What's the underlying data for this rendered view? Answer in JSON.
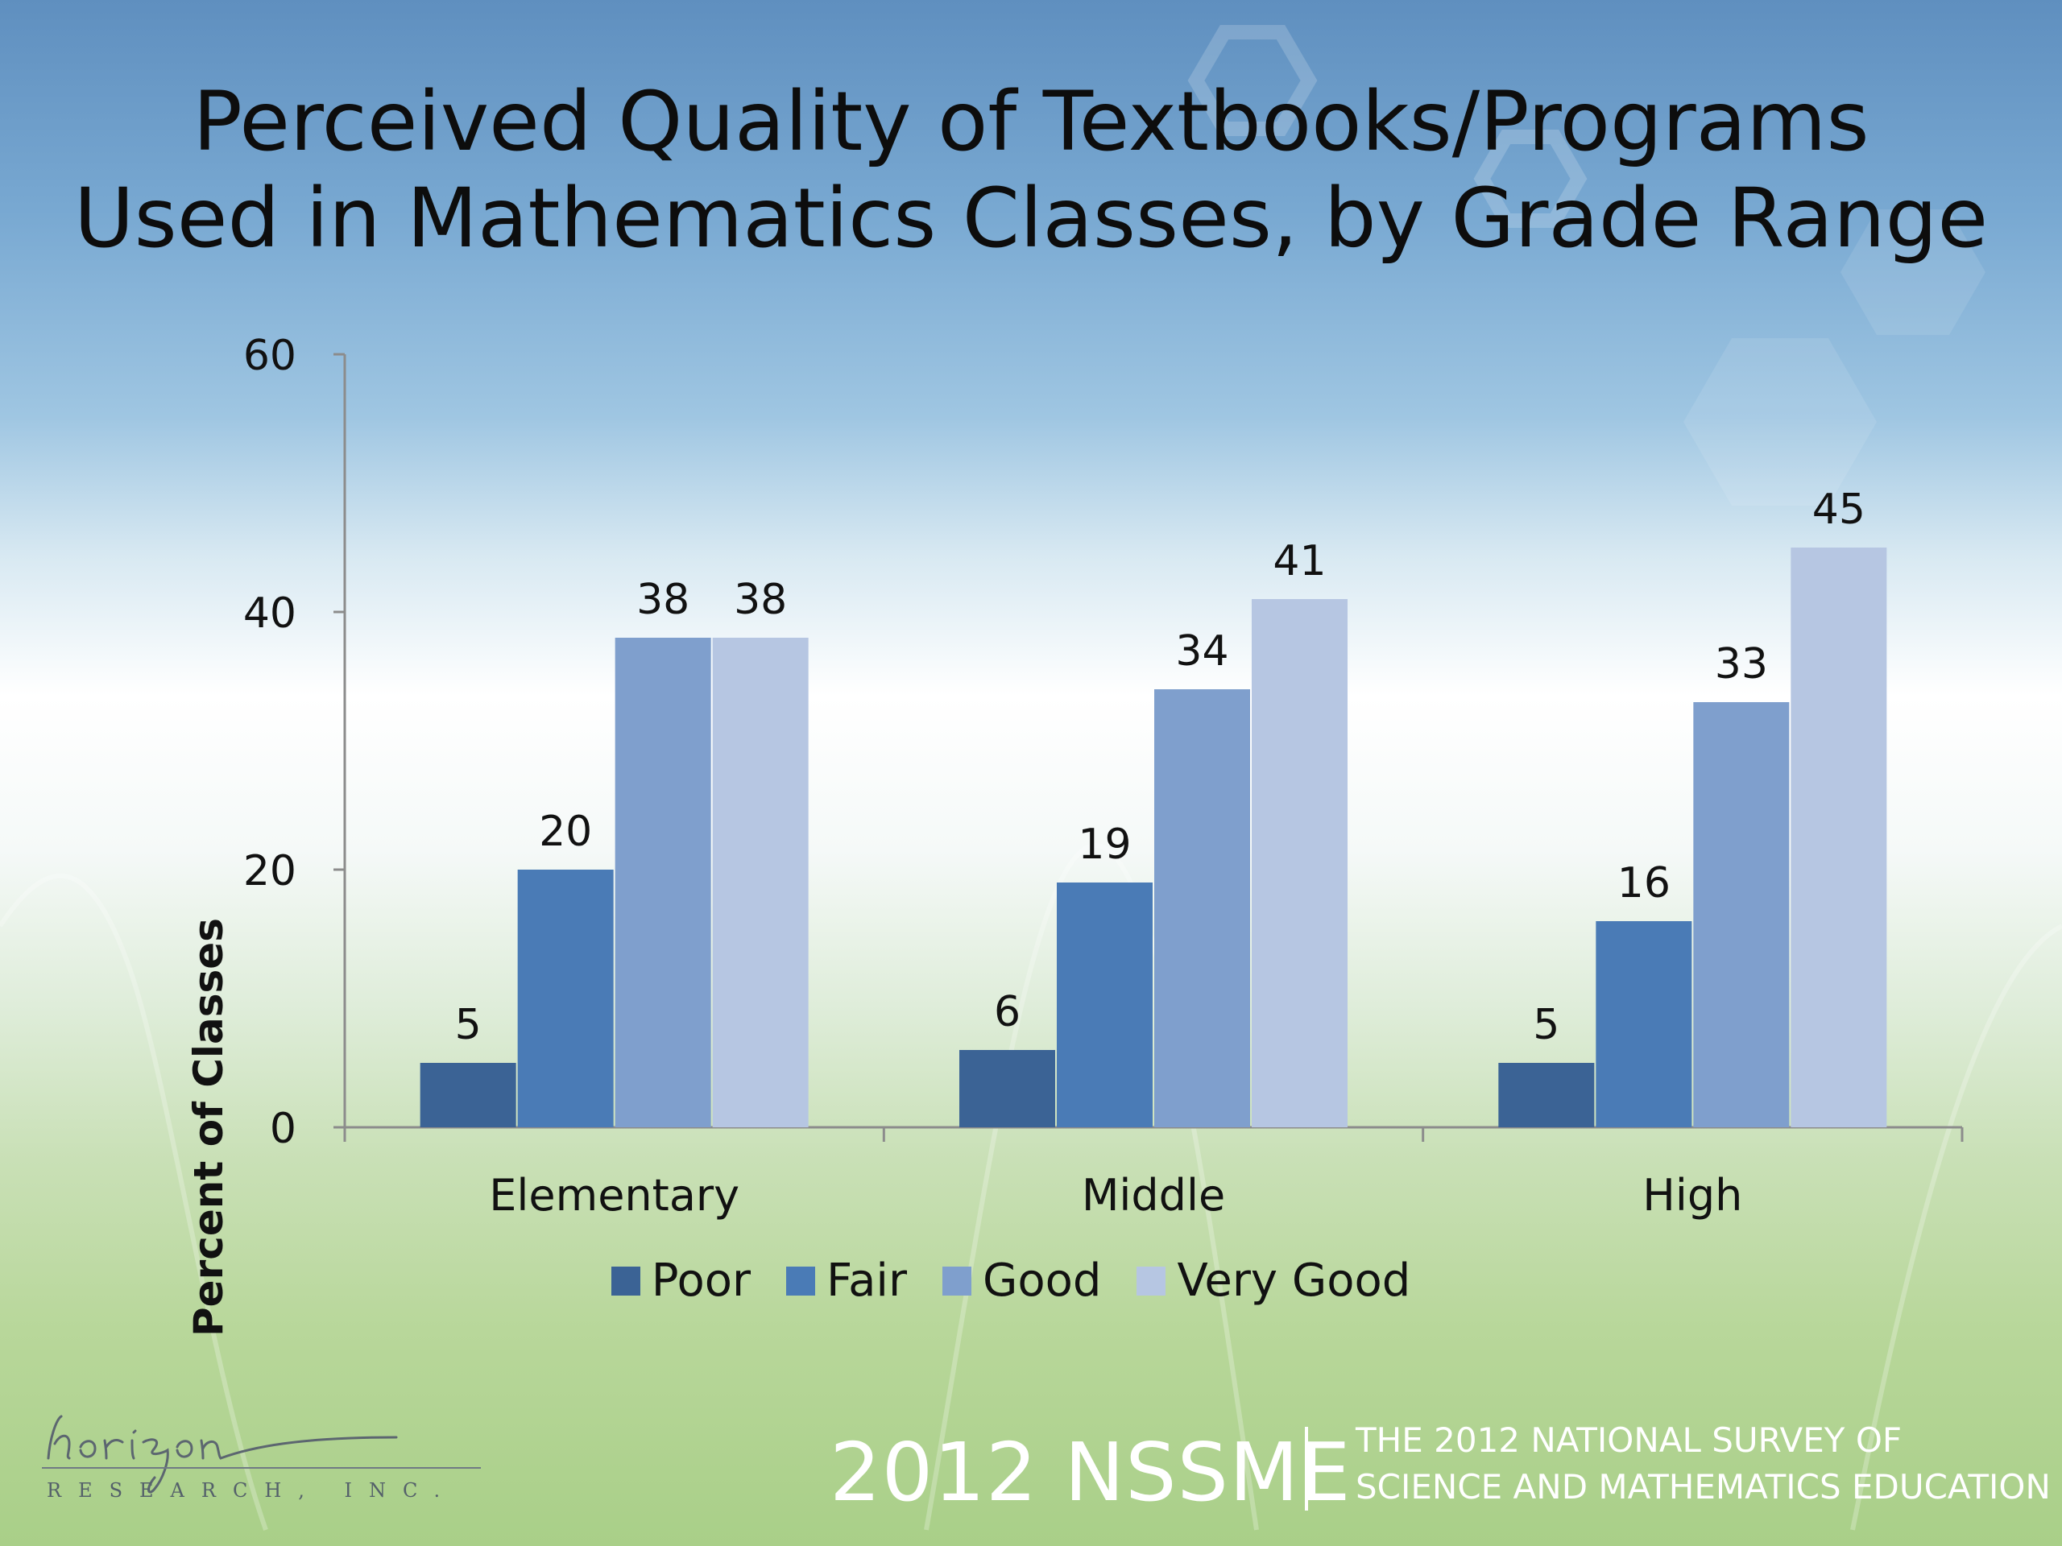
{
  "title": {
    "line1": "Perceived Quality of Textbooks/Programs",
    "line2": "Used in Mathematics Classes, by Grade Range"
  },
  "chart_data": {
    "type": "bar",
    "categories": [
      "Elementary",
      "Middle",
      "High"
    ],
    "series": [
      {
        "name": "Poor",
        "values": [
          5,
          6,
          5
        ],
        "color": "#3b6395"
      },
      {
        "name": "Fair",
        "values": [
          20,
          19,
          16
        ],
        "color": "#4a7bb6"
      },
      {
        "name": "Good",
        "values": [
          38,
          34,
          33
        ],
        "color": "#7f9fcd"
      },
      {
        "name": "Very Good",
        "values": [
          38,
          41,
          45
        ],
        "color": "#b6c6e2"
      }
    ],
    "ylabel": "Percent of Classes",
    "ylim": [
      0,
      60
    ],
    "yticks": [
      0,
      20,
      40,
      60
    ],
    "data_labels": true,
    "legend": "bottom",
    "grid": false
  },
  "footer": {
    "logo_word": "horizon",
    "logo_sub": "RESEARCH, INC.",
    "brand": "2012 NSSME",
    "brand_line1": "THE 2012 NATIONAL SURVEY OF",
    "brand_line2": "SCIENCE AND MATHEMATICS EDUCATION"
  }
}
